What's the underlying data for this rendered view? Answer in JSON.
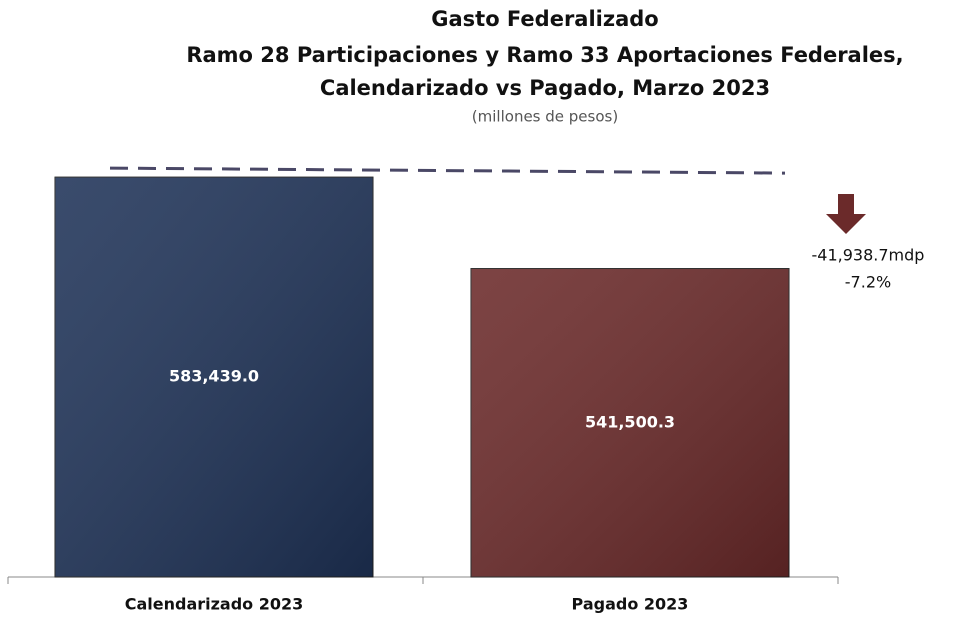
{
  "chart_data": {
    "type": "bar",
    "title": [
      "Gasto Federalizado",
      "Ramo 28 Participaciones y Ramo 33 Aportaciones Federales,",
      "Calendarizado vs Pagado, Marzo 2023"
    ],
    "subtitle": "(millones de pesos)",
    "categories": [
      "Calendarizado 2023",
      "Pagado 2023"
    ],
    "values": [
      583439.0,
      541500.3
    ],
    "value_labels": [
      "583,439.0",
      "541,500.3"
    ],
    "colors": [
      "#1f3358",
      "#6b2a2a"
    ],
    "ylim": [
      400000,
      600000
    ],
    "annotations": [
      "-41,938.7mdp",
      "-7.2%"
    ]
  }
}
